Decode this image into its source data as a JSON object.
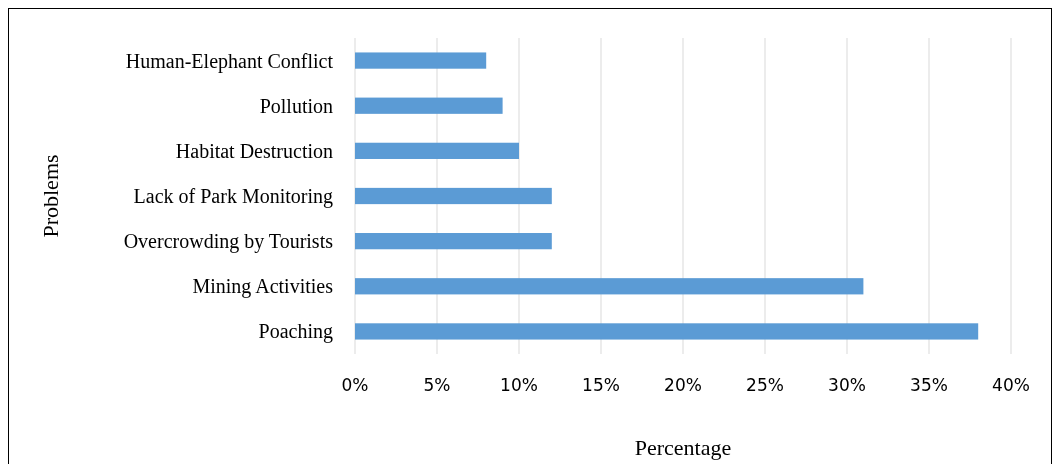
{
  "chart_data": {
    "type": "bar",
    "orientation": "horizontal",
    "xlabel": "Percentage",
    "ylabel": "Problems",
    "categories": [
      "Human-Elephant Conflict",
      "Pollution",
      "Habitat Destruction",
      "Lack of Park Monitoring",
      "Overcrowding by Tourists",
      "Mining Activities",
      "Poaching"
    ],
    "values": [
      8,
      9,
      10,
      12,
      12,
      31,
      38
    ],
    "color": "#5b9bd5",
    "xlim": [
      0,
      40
    ],
    "xticks": [
      {
        "value": 0,
        "label": "0%"
      },
      {
        "value": 5,
        "label": "5%"
      },
      {
        "value": 10,
        "label": "10%"
      },
      {
        "value": 15,
        "label": "15%"
      },
      {
        "value": 20,
        "label": "20%"
      },
      {
        "value": 25,
        "label": "25%"
      },
      {
        "value": 30,
        "label": "30%"
      },
      {
        "value": 35,
        "label": "35%"
      },
      {
        "value": 40,
        "label": "40%"
      }
    ],
    "grid": "x"
  }
}
